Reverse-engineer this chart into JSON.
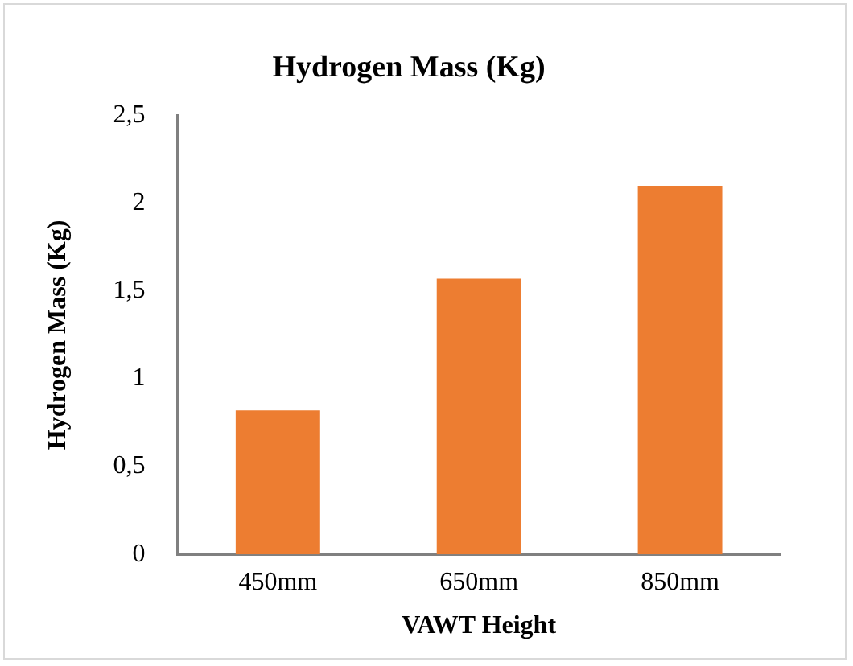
{
  "chart_data": {
    "type": "bar",
    "title": "Hydrogen Mass (Kg)",
    "xlabel": "VAWT Height",
    "ylabel": "Hydrogen Mass (Kg)",
    "categories": [
      "450mm",
      "650mm",
      "850mm"
    ],
    "values": [
      0.82,
      1.57,
      2.1
    ],
    "color": "#ed7d31",
    "ylim": [
      0,
      2.5
    ],
    "yticks": [
      0,
      {
        "value": 0.5,
        "label": "0,5"
      },
      1,
      {
        "value": 1.5,
        "label": "1,5"
      },
      2,
      {
        "value": 2.5,
        "label": "2,5"
      }
    ],
    "grid": false,
    "legend": false
  }
}
